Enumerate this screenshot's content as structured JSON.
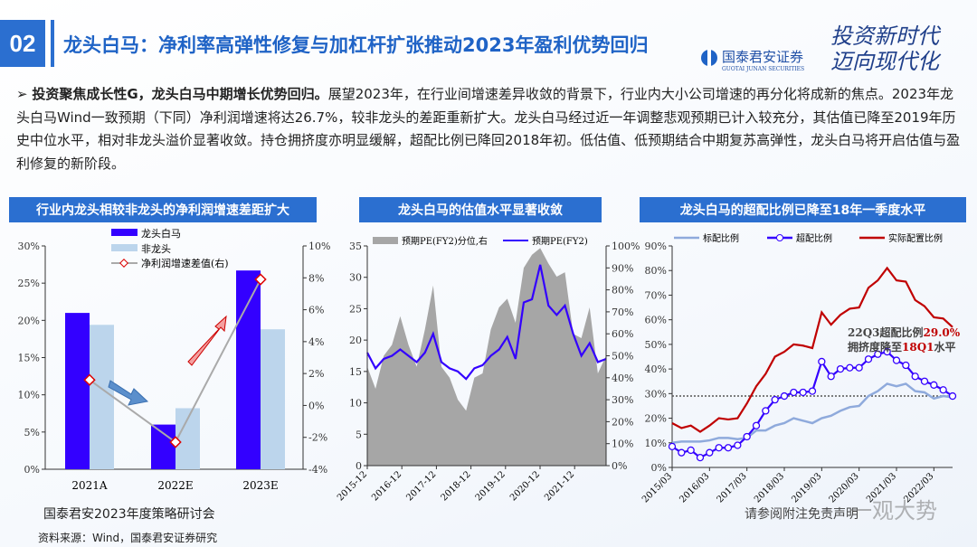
{
  "header": {
    "section_number": "02",
    "title": "龙头白马：净利率高弹性修复与加杠杆扩张推动2023年盈利优势回归",
    "logo_name": "国泰君安证券",
    "logo_en": "GUOTAI JUNAN SECURITIES",
    "slogan_line1": "投资新时代",
    "slogan_line2": "迈向现代化"
  },
  "paragraph": {
    "bullet": "➢",
    "bold": "投资聚焦成长性G，龙头白马中期增长优势回归。",
    "text": "展望2023年，在行业间增速差异收敛的背景下，行业内大小公司增速的再分化将成新的焦点。2023年龙头白马Wind一致预期（下同）净利润增速将达26.7%，较非龙头的差距重新扩大。龙头白马经过近一年调整悲观预期已计入较充分，其估值已降至2019年历史中位水平，相对非龙头溢价显著收敛。持仓拥挤度亦明显缓解，超配比例已降回2018年初。低估值、低预期结合中期复苏高弹性，龙头白马将开启估值与盈利修复的新阶段。"
  },
  "chart_data": [
    {
      "type": "bar",
      "title": "行业内龙头相较非龙头的净利润增速差距扩大",
      "categories": [
        "2021A",
        "2022E",
        "2023E"
      ],
      "series": [
        {
          "name": "龙头白马",
          "values": [
            21.0,
            6.0,
            26.7
          ],
          "color": "#3300ff"
        },
        {
          "name": "非龙头",
          "values": [
            19.4,
            8.2,
            18.8
          ],
          "color": "#bcd5ec"
        },
        {
          "name": "净利润增速差值(右)",
          "values": [
            1.6,
            -2.3,
            7.9
          ],
          "axis": "right",
          "kind": "line",
          "color": "#999999"
        }
      ],
      "ylim": [
        0,
        30
      ],
      "yticks": [
        "0%",
        "5%",
        "10%",
        "15%",
        "20%",
        "25%",
        "30%"
      ],
      "y2lim": [
        -4,
        10
      ],
      "y2ticks": [
        "-4%",
        "-2%",
        "0%",
        "2%",
        "4%",
        "6%",
        "8%",
        "10%"
      ]
    },
    {
      "type": "area",
      "title": "龙头白马的估值水平显著收敛",
      "x": [
        "2015-12",
        "2016-03",
        "2016-06",
        "2016-09",
        "2016-12",
        "2017-03",
        "2017-06",
        "2017-09",
        "2017-12",
        "2018-03",
        "2018-06",
        "2018-09",
        "2018-12",
        "2019-03",
        "2019-06",
        "2019-09",
        "2019-12",
        "2020-03",
        "2020-06",
        "2020-09",
        "2020-12",
        "2021-02",
        "2021-06",
        "2021-09",
        "2021-12",
        "2022-03",
        "2022-06",
        "2022-08",
        "2022-10",
        "2022-11"
      ],
      "xticks": [
        "2015-12",
        "2016-12",
        "2017-12",
        "2018-12",
        "2019-12",
        "2020-12",
        "2021-12"
      ],
      "series": [
        {
          "name": "预期PE(FY2)分位,右",
          "axis": "right",
          "kind": "area",
          "color": "#a6a6a6",
          "values": [
            45,
            35,
            50,
            55,
            68,
            55,
            45,
            62,
            82,
            45,
            40,
            30,
            25,
            40,
            42,
            62,
            72,
            76,
            65,
            90,
            96,
            99,
            92,
            86,
            88,
            60,
            58,
            72,
            42,
            50
          ]
        },
        {
          "name": "预期PE(FY2)",
          "kind": "line",
          "color": "#3300ff",
          "values": [
            18,
            15.5,
            17,
            17.5,
            18.5,
            17.5,
            16.5,
            18,
            21,
            16.5,
            15.5,
            15,
            13.8,
            15.5,
            16,
            17.5,
            18.5,
            20.5,
            17,
            26,
            26.5,
            32,
            25.5,
            24,
            25.5,
            21,
            17.5,
            19.5,
            16.5,
            17
          ]
        }
      ],
      "ylim": [
        0,
        35
      ],
      "yticks": [
        "0",
        "5",
        "10",
        "15",
        "20",
        "25",
        "30",
        "35"
      ],
      "y2lim": [
        0,
        100
      ],
      "y2ticks": [
        "0%",
        "10%",
        "20%",
        "30%",
        "40%",
        "50%",
        "60%",
        "70%",
        "80%",
        "90%",
        "100%"
      ]
    },
    {
      "type": "line",
      "title": "龙头白马的超配比例已降至18年一季度水平",
      "xticks": [
        "2015/03",
        "2016/03",
        "2017/03",
        "2018/03",
        "2019/03",
        "2020/03",
        "2021/03",
        "2022/03"
      ],
      "series": [
        {
          "name": "标配比例",
          "color": "#8faadc",
          "values": [
            10,
            10.5,
            10.5,
            10.5,
            11,
            12,
            12,
            11.5,
            12,
            15,
            15,
            17,
            18,
            20,
            19,
            18,
            20,
            21,
            23,
            24.5,
            25,
            29,
            31,
            34,
            33,
            34,
            31,
            30.5,
            28,
            29,
            28.5
          ]
        },
        {
          "name": "超配比例",
          "color": "#3300ff",
          "markers": true,
          "values": [
            8.5,
            6,
            7,
            4,
            6,
            8,
            8,
            9,
            12.5,
            17,
            23,
            27.5,
            29,
            30.5,
            30.5,
            31,
            43,
            37,
            40,
            40.5,
            40.5,
            44,
            46,
            47,
            43.5,
            41.5,
            37,
            35,
            33.5,
            31.5,
            29
          ]
        },
        {
          "name": "实际配置比例",
          "color": "#c00000",
          "values": [
            18,
            16,
            17,
            14.5,
            17,
            20,
            19.5,
            20,
            26,
            33,
            38,
            45,
            47,
            50,
            49.5,
            48.5,
            63,
            58,
            62,
            64.5,
            65,
            73,
            76,
            81,
            76,
            75.5,
            68,
            65.5,
            61,
            60.5,
            57
          ]
        }
      ],
      "reference_line": 29,
      "ylim": [
        0,
        90
      ],
      "yticks": [
        "0%",
        "10%",
        "20%",
        "30%",
        "40%",
        "50%",
        "60%",
        "70%",
        "80%",
        "90%"
      ],
      "annotation": {
        "line1_a": "22Q3超配比例",
        "line1_b": "29.0%",
        "line2_a": "拥挤度降至",
        "line2_b": "18Q1",
        "line2_c": "水平"
      }
    }
  ],
  "footer": {
    "event": "国泰君安2023年度策略研讨会",
    "source": "资料来源：Wind，国泰君安证券研究",
    "disclaimer": "请参阅附注免责声明",
    "watermark": "一观大势"
  }
}
